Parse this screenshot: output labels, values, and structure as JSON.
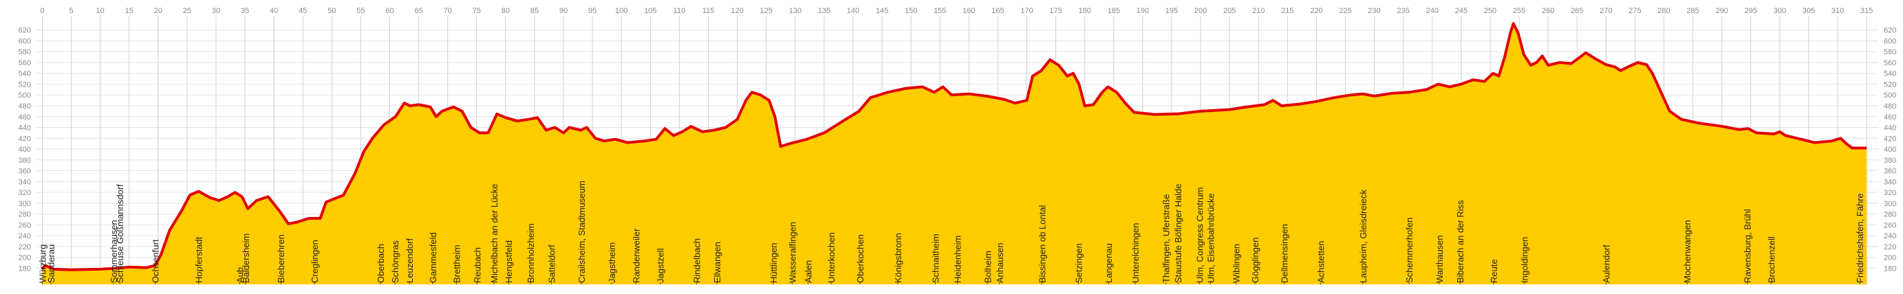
{
  "chart_data": {
    "type": "area",
    "color": "#ffcc00",
    "line_color": "#e00000",
    "grid": true,
    "xlim": [
      -1,
      317
    ],
    "ylim": [
      150,
      645
    ],
    "xticks": [
      0,
      5,
      10,
      15,
      20,
      25,
      30,
      35,
      40,
      45,
      50,
      55,
      60,
      65,
      70,
      75,
      80,
      85,
      90,
      95,
      100,
      105,
      110,
      115,
      120,
      125,
      130,
      135,
      140,
      145,
      150,
      155,
      160,
      165,
      170,
      175,
      180,
      185,
      190,
      195,
      200,
      205,
      210,
      215,
      220,
      225,
      230,
      235,
      240,
      245,
      250,
      255,
      260,
      265,
      270,
      275,
      280,
      285,
      290,
      295,
      300,
      305,
      310,
      315
    ],
    "yticks": [
      180,
      200,
      220,
      240,
      260,
      280,
      300,
      320,
      340,
      360,
      380,
      400,
      420,
      440,
      460,
      480,
      500,
      520,
      540,
      560,
      580,
      600,
      620
    ],
    "x": [
      0,
      0.5,
      2,
      5,
      10,
      13,
      15,
      18,
      19.5,
      20.5,
      22,
      24,
      25.5,
      27,
      29,
      30.5,
      32,
      33.3,
      34.5,
      35.5,
      37,
      39,
      41,
      42.5,
      44,
      46,
      48,
      49,
      52,
      54,
      55.5,
      57,
      59,
      61,
      62.5,
      63.5,
      65,
      67,
      68,
      69,
      71,
      72.5,
      74,
      75.5,
      77,
      78.5,
      80,
      82,
      84,
      85.5,
      87,
      88.5,
      90,
      91,
      93,
      94,
      95.5,
      97,
      99,
      101,
      104,
      106,
      107.5,
      109,
      110.5,
      112,
      114,
      116,
      118,
      120,
      121.5,
      122.5,
      124,
      125.5,
      126.5,
      127.5,
      129,
      132,
      135,
      138,
      141,
      143,
      146,
      149,
      152,
      154,
      155.5,
      157,
      160,
      163,
      166,
      168,
      170,
      171,
      172.5,
      174,
      175.5,
      177,
      178,
      179,
      180,
      181.5,
      183,
      184,
      185.5,
      187,
      188.5,
      192,
      196,
      200,
      205,
      208,
      211,
      212.5,
      214,
      217,
      220,
      223,
      226,
      228,
      230,
      233,
      236,
      239,
      241,
      243,
      245,
      247,
      249,
      250.5,
      251.5,
      252.5,
      253.5,
      254,
      254.8,
      255.8,
      257,
      258,
      259,
      260,
      262,
      264,
      265.5,
      266.5,
      268,
      270,
      271.5,
      272.5,
      274,
      275.5,
      277,
      278,
      279.5,
      281,
      283,
      286,
      290,
      293,
      294.5,
      296,
      299,
      300,
      301,
      303,
      306,
      309,
      310.5,
      311.5,
      312.5,
      315
    ],
    "values": [
      178,
      185,
      178,
      177,
      178,
      180,
      182,
      181,
      185,
      205,
      250,
      285,
      315,
      322,
      310,
      305,
      312,
      320,
      312,
      290,
      305,
      312,
      285,
      262,
      265,
      272,
      272,
      302,
      315,
      355,
      395,
      420,
      445,
      460,
      485,
      480,
      482,
      478,
      460,
      470,
      478,
      470,
      440,
      430,
      430,
      465,
      458,
      452,
      455,
      458,
      435,
      440,
      430,
      440,
      435,
      440,
      420,
      415,
      418,
      412,
      415,
      418,
      438,
      425,
      432,
      442,
      432,
      435,
      440,
      455,
      490,
      505,
      500,
      490,
      460,
      405,
      410,
      418,
      430,
      450,
      470,
      495,
      505,
      512,
      515,
      505,
      515,
      500,
      502,
      498,
      492,
      485,
      490,
      535,
      545,
      565,
      555,
      535,
      540,
      520,
      480,
      482,
      505,
      515,
      505,
      485,
      468,
      464,
      465,
      470,
      473,
      478,
      482,
      490,
      480,
      483,
      488,
      495,
      500,
      502,
      498,
      503,
      505,
      510,
      520,
      515,
      520,
      528,
      525,
      540,
      535,
      570,
      615,
      632,
      615,
      575,
      555,
      560,
      572,
      555,
      560,
      558,
      570,
      578,
      568,
      556,
      552,
      545,
      553,
      560,
      556,
      540,
      505,
      470,
      455,
      448,
      442,
      436,
      438,
      430,
      428,
      432,
      425,
      420,
      412,
      415,
      420,
      410,
      402,
      402
    ],
    "stations": [
      {
        "name": "Würzburg",
        "x": 0
      },
      {
        "name": "Sanderau",
        "x": 1.5
      },
      {
        "name": "Sommerhausen",
        "x": 12.3
      },
      {
        "name": "Schleuse Goßmannsdorf",
        "x": 13.4
      },
      {
        "name": "Ochsenfurt",
        "x": 19.5
      },
      {
        "name": "Hopferstadt",
        "x": 27
      },
      {
        "name": "Aub",
        "x": 34.1
      },
      {
        "name": "Baldersheim",
        "x": 35.1
      },
      {
        "name": "Bieberehren",
        "x": 41.2
      },
      {
        "name": "Creglingen",
        "x": 47
      },
      {
        "name": "Oberbach",
        "x": 58.4
      },
      {
        "name": "Schöngras",
        "x": 60.9
      },
      {
        "name": "Leuzendorf",
        "x": 63.4
      },
      {
        "name": "Gammesfeld",
        "x": 67.4
      },
      {
        "name": "Brettheim",
        "x": 71.5
      },
      {
        "name": "Reubach",
        "x": 75.1
      },
      {
        "name": "Michelbach an der Lücke",
        "x": 78
      },
      {
        "name": "Hengstfeld",
        "x": 80.5
      },
      {
        "name": "Bronnholzheim",
        "x": 84.3
      },
      {
        "name": "Satteldorf",
        "x": 87.9
      },
      {
        "name": "Crailsheim, Stadtmuseum",
        "x": 93.1
      },
      {
        "name": "Jagstheim",
        "x": 98.3
      },
      {
        "name": "Randenweiler",
        "x": 102.5
      },
      {
        "name": "Jagstzell",
        "x": 106.7
      },
      {
        "name": "Rindelbach",
        "x": 113
      },
      {
        "name": "Ellwangen",
        "x": 116.5
      },
      {
        "name": "Hüttlingen",
        "x": 126.2
      },
      {
        "name": "Wasseralfingen",
        "x": 129.5
      },
      {
        "name": "Aalen",
        "x": 132.2
      },
      {
        "name": "Unterkochen",
        "x": 136.2
      },
      {
        "name": "Oberkochen",
        "x": 141.2
      },
      {
        "name": "Königsbronn",
        "x": 147.7
      },
      {
        "name": "Schnaitheim",
        "x": 154.2
      },
      {
        "name": "Heidenheim",
        "x": 158
      },
      {
        "name": "Bolheim",
        "x": 163.2
      },
      {
        "name": "Anhausen",
        "x": 165.3
      },
      {
        "name": "Bissingen ob Lontal",
        "x": 172.6
      },
      {
        "name": "Setzingen",
        "x": 178.9
      },
      {
        "name": "Langenau",
        "x": 184.1
      },
      {
        "name": "Unterelchingen",
        "x": 188.7
      },
      {
        "name": "Thalfingen, Uferstraße",
        "x": 194
      },
      {
        "name": "Staustufe Böfinger Halde",
        "x": 196.1
      },
      {
        "name": "Ulm, Congress Centrum",
        "x": 199.8
      },
      {
        "name": "Ulm, Eisenbahnbrücke",
        "x": 201.7
      },
      {
        "name": "Wiblingen",
        "x": 206.1
      },
      {
        "name": "Gögglingen",
        "x": 209.4
      },
      {
        "name": "Dellmensingen",
        "x": 214.4
      },
      {
        "name": "Achstetten",
        "x": 220.7
      },
      {
        "name": "Laupheim, Gleisdreieck",
        "x": 228
      },
      {
        "name": "Schemmerhofen",
        "x": 236
      },
      {
        "name": "Warthausen",
        "x": 241.2
      },
      {
        "name": "Biberach an der Riss",
        "x": 244.8
      },
      {
        "name": "Reute",
        "x": 250.6
      },
      {
        "name": "Ingoldingen",
        "x": 255.9
      },
      {
        "name": "Aulendorf",
        "x": 270
      },
      {
        "name": "Mochenwangen",
        "x": 284
      },
      {
        "name": "Ravensburg, Brühl",
        "x": 294.4
      },
      {
        "name": "Brochenzell",
        "x": 298.5
      },
      {
        "name": "Friedrichshafen, Fähre",
        "x": 313.8
      }
    ]
  }
}
